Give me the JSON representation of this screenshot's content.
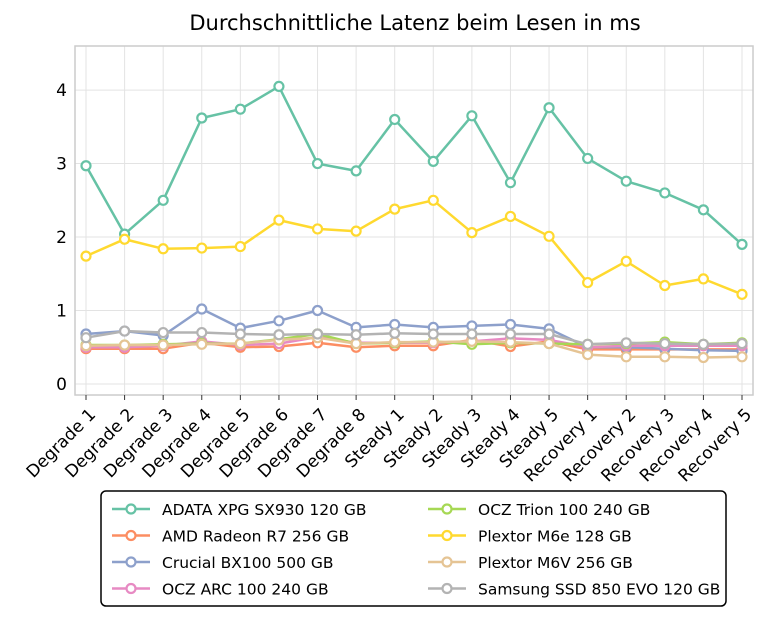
{
  "chart_data": {
    "type": "line",
    "title": "Durchschnittliche Latenz beim Lesen in ms",
    "xlabel": "",
    "ylabel": "",
    "ylim": [
      -0.15,
      4.6
    ],
    "yticks": [
      0,
      1,
      2,
      3,
      4
    ],
    "grid": true,
    "legend_position": "bottom",
    "categories": [
      "Degrade 1",
      "Degrade 2",
      "Degrade 3",
      "Degrade 4",
      "Degrade 5",
      "Degrade 6",
      "Degrade 7",
      "Degrade 8",
      "Steady 1",
      "Steady 2",
      "Steady 3",
      "Steady 4",
      "Steady 5",
      "Recovery 1",
      "Recovery 2",
      "Recovery 3",
      "Recovery 4",
      "Recovery 5"
    ],
    "series": [
      {
        "name": "ADATA XPG SX930 120 GB",
        "color": "#66c2a5",
        "values": [
          2.97,
          2.04,
          2.5,
          3.62,
          3.74,
          4.05,
          3.0,
          2.9,
          3.6,
          3.03,
          3.65,
          2.74,
          3.76,
          3.07,
          2.76,
          2.6,
          2.37,
          1.9
        ]
      },
      {
        "name": "AMD Radeon R7 256 GB",
        "color": "#fc8d62",
        "values": [
          0.48,
          0.48,
          0.48,
          0.56,
          0.5,
          0.51,
          0.56,
          0.5,
          0.52,
          0.52,
          0.6,
          0.51,
          0.58,
          0.47,
          0.47,
          0.47,
          0.47,
          0.47
        ]
      },
      {
        "name": "Crucial BX100 500 GB",
        "color": "#8da0cb",
        "values": [
          0.68,
          0.72,
          0.66,
          1.02,
          0.76,
          0.86,
          1.0,
          0.77,
          0.81,
          0.77,
          0.79,
          0.81,
          0.75,
          0.5,
          0.5,
          0.48,
          0.46,
          0.45
        ]
      },
      {
        "name": "OCZ ARC 100 240 GB",
        "color": "#e78ac3",
        "values": [
          0.5,
          0.5,
          0.52,
          0.58,
          0.53,
          0.55,
          0.64,
          0.56,
          0.56,
          0.56,
          0.58,
          0.62,
          0.6,
          0.5,
          0.52,
          0.52,
          0.52,
          0.52
        ]
      },
      {
        "name": "OCZ Trion 100 240 GB",
        "color": "#a6d854",
        "values": [
          0.53,
          0.53,
          0.54,
          0.55,
          0.55,
          0.61,
          0.68,
          0.55,
          0.56,
          0.58,
          0.54,
          0.56,
          0.55,
          0.54,
          0.55,
          0.57,
          0.54,
          0.56
        ]
      },
      {
        "name": "Plextor M6e 128 GB",
        "color": "#ffd92f",
        "values": [
          1.74,
          1.97,
          1.84,
          1.85,
          1.87,
          2.23,
          2.11,
          2.08,
          2.38,
          2.5,
          2.06,
          2.28,
          2.01,
          1.38,
          1.67,
          1.34,
          1.43,
          1.22
        ]
      },
      {
        "name": "Plextor M6V 256 GB",
        "color": "#e5c494",
        "values": [
          0.52,
          0.53,
          0.53,
          0.54,
          0.55,
          0.6,
          0.63,
          0.55,
          0.57,
          0.57,
          0.58,
          0.57,
          0.55,
          0.4,
          0.37,
          0.37,
          0.36,
          0.37
        ]
      },
      {
        "name": "Samsung SSD 850 EVO 120 GB",
        "color": "#b3b3b3",
        "values": [
          0.63,
          0.72,
          0.7,
          0.7,
          0.68,
          0.67,
          0.68,
          0.67,
          0.69,
          0.68,
          0.68,
          0.68,
          0.68,
          0.54,
          0.56,
          0.55,
          0.54,
          0.55
        ]
      }
    ]
  }
}
